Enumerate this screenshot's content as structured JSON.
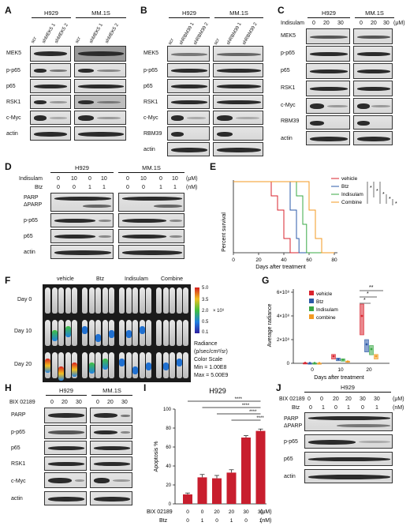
{
  "panels": {
    "A": {
      "letter": "A",
      "groups": [
        "H929",
        "MM.1S"
      ],
      "lanes": [
        "scr",
        "shMEK5 1",
        "shMEK5 2",
        "scr",
        "shMEK5 1",
        "shMEK5 2"
      ],
      "rows": [
        "MEK5",
        "p-p65",
        "p65",
        "RSK1",
        "c-Myc",
        "actin"
      ]
    },
    "B": {
      "letter": "B",
      "groups": [
        "H929",
        "MM.1S"
      ],
      "lanes": [
        "scr",
        "shRBM39 1",
        "shRBM39 2",
        "scr",
        "shRBM39 1",
        "shRBM39 2"
      ],
      "rows": [
        "MEK5",
        "p-p65",
        "p65",
        "RSK1",
        "c-Myc",
        "RBM39",
        "actin"
      ]
    },
    "C": {
      "letter": "C",
      "groups": [
        "H929",
        "MM.1S"
      ],
      "indisulam_label": "Indisulam",
      "doses": [
        "0",
        "20",
        "30",
        "0",
        "20",
        "30"
      ],
      "unit": "(μM)",
      "rows": [
        "MEK5",
        "p-p65",
        "p65",
        "RSK1",
        "c-Myc",
        "RBM39",
        "actin"
      ]
    },
    "D": {
      "letter": "D",
      "groups": [
        "H929",
        "MM.1S"
      ],
      "indisulam_label": "Indisulam",
      "indisulam": [
        "0",
        "10",
        "0",
        "10",
        "0",
        "10",
        "0",
        "10"
      ],
      "btz_label": "Btz",
      "btz": [
        "0",
        "0",
        "1",
        "1",
        "0",
        "0",
        "1",
        "1"
      ],
      "unit1": "(μM)",
      "unit2": "(nM)",
      "rows": [
        "PARP",
        "ΔPARP",
        "p-p65",
        "p65",
        "actin"
      ]
    },
    "E": {
      "letter": "E",
      "ylabel": "Percent survival",
      "xlabel": "Days after treatment",
      "xticks": [
        "0",
        "20",
        "40",
        "60",
        "80"
      ],
      "legend": [
        "vehicle",
        "Btz",
        "Indisulam",
        "Combine"
      ],
      "sig": [
        "*",
        "*",
        "*",
        "*",
        "*"
      ]
    },
    "F": {
      "letter": "F",
      "columns": [
        "vehicle",
        "Btz",
        "Indisulam",
        "Combine"
      ],
      "days": [
        "Day 0",
        "Day 10",
        "Day 20"
      ],
      "scale_ticks": [
        "5.0",
        "3.5",
        "2.0",
        "0.5",
        "0.1"
      ],
      "scale_exp": "× 10⁹",
      "caption": [
        "Radiance",
        "(p/sec/cm²/sr)",
        "Color Scale",
        "Min = 1.00E8",
        "Max = 5.00E9"
      ]
    },
    "G": {
      "letter": "G",
      "ylabel": "Average radiance",
      "xlabel": "Days after treatment",
      "xticks": [
        "0",
        "10",
        "20"
      ],
      "yticks": [
        "0",
        "2×10⁸",
        "4×10⁸",
        "6×10⁸"
      ],
      "legend": [
        "vehicle",
        "Btz",
        "Indisulam",
        "combine"
      ],
      "sig": [
        "**",
        "*",
        "*"
      ]
    },
    "H": {
      "letter": "H",
      "groups": [
        "H929",
        "MM.1S"
      ],
      "bix_label": "BIX 02189",
      "doses": [
        "0",
        "20",
        "30",
        "0",
        "20",
        "30"
      ],
      "rows": [
        "PARP",
        "p-p65",
        "p65",
        "RSK1",
        "c-Myc",
        "actin"
      ]
    },
    "I": {
      "letter": "I",
      "title": "H929",
      "ylabel": "Apoptosis %",
      "yticks": [
        "0",
        "20",
        "40",
        "60",
        "80",
        "100"
      ],
      "sig": [
        "****",
        "****",
        "****",
        "****"
      ],
      "bix_label": "BIX 02189",
      "bix": [
        "0",
        "0",
        "20",
        "20",
        "30",
        "30"
      ],
      "btz_label": "Btz",
      "btz": [
        "0",
        "1",
        "0",
        "1",
        "0",
        "1"
      ],
      "unit1": "(μM)",
      "unit2": "(nM)"
    },
    "J": {
      "letter": "J",
      "title": "H929",
      "bix_label": "BIX 02189",
      "bix": [
        "0",
        "0",
        "20",
        "20",
        "30",
        "30"
      ],
      "btz_label": "Btz",
      "btz": [
        "0",
        "1",
        "0",
        "1",
        "0",
        "1"
      ],
      "unit1": "(μM)",
      "unit2": "(nM)",
      "rows": [
        "PARP",
        "ΔPARP",
        "p-p65",
        "p65",
        "actin"
      ]
    }
  },
  "chart_data": [
    {
      "type": "line",
      "panel": "E",
      "title": "",
      "xlabel": "Days after treatment",
      "ylabel": "Percent survival",
      "xlim": [
        0,
        80
      ],
      "ylim": [
        0,
        100
      ],
      "series": [
        {
          "name": "vehicle",
          "color": "#d9232e",
          "x": [
            0,
            30,
            30,
            35,
            35,
            40,
            40,
            45,
            45,
            80
          ],
          "y": [
            100,
            100,
            80,
            80,
            60,
            60,
            20,
            20,
            0,
            0
          ]
        },
        {
          "name": "Btz",
          "color": "#2b5aa8",
          "x": [
            0,
            45,
            45,
            50,
            50,
            52,
            52,
            80
          ],
          "y": [
            100,
            100,
            60,
            60,
            20,
            20,
            0,
            0
          ]
        },
        {
          "name": "Indisulam",
          "color": "#3aa845",
          "x": [
            0,
            50,
            50,
            55,
            55,
            58,
            58,
            80
          ],
          "y": [
            100,
            100,
            80,
            80,
            40,
            40,
            0,
            0
          ]
        },
        {
          "name": "Combine",
          "color": "#f39a22",
          "x": [
            0,
            60,
            60,
            65,
            65,
            70,
            70,
            80
          ],
          "y": [
            100,
            100,
            60,
            60,
            20,
            20,
            0,
            0
          ]
        }
      ]
    },
    {
      "type": "scatter",
      "panel": "G",
      "title": "",
      "xlabel": "Days after treatment",
      "ylabel": "Average radiance",
      "categories": [
        "0",
        "10",
        "20"
      ],
      "ylim": [
        0,
        600000000
      ],
      "series": [
        {
          "name": "vehicle",
          "color": "#d9232e",
          "values": [
            3000000,
            60000000,
            400000000
          ]
        },
        {
          "name": "Btz",
          "color": "#2b5aa8",
          "values": [
            2000000,
            35000000,
            160000000
          ]
        },
        {
          "name": "Indisulam",
          "color": "#3aa845",
          "values": [
            2000000,
            30000000,
            120000000
          ]
        },
        {
          "name": "combine",
          "color": "#f39a22",
          "values": [
            1500000,
            15000000,
            60000000
          ]
        }
      ]
    },
    {
      "type": "bar",
      "panel": "I",
      "title": "H929",
      "xlabel": "",
      "ylabel": "Apoptosis %",
      "ylim": [
        0,
        100
      ],
      "categories": [
        "0/0",
        "0/1",
        "20/0",
        "20/1",
        "30/0",
        "30/1"
      ],
      "values": [
        10,
        28,
        27,
        33,
        70,
        77
      ],
      "errors": [
        1.5,
        3,
        3,
        3,
        2,
        2
      ],
      "color": "#c81e2e"
    }
  ]
}
